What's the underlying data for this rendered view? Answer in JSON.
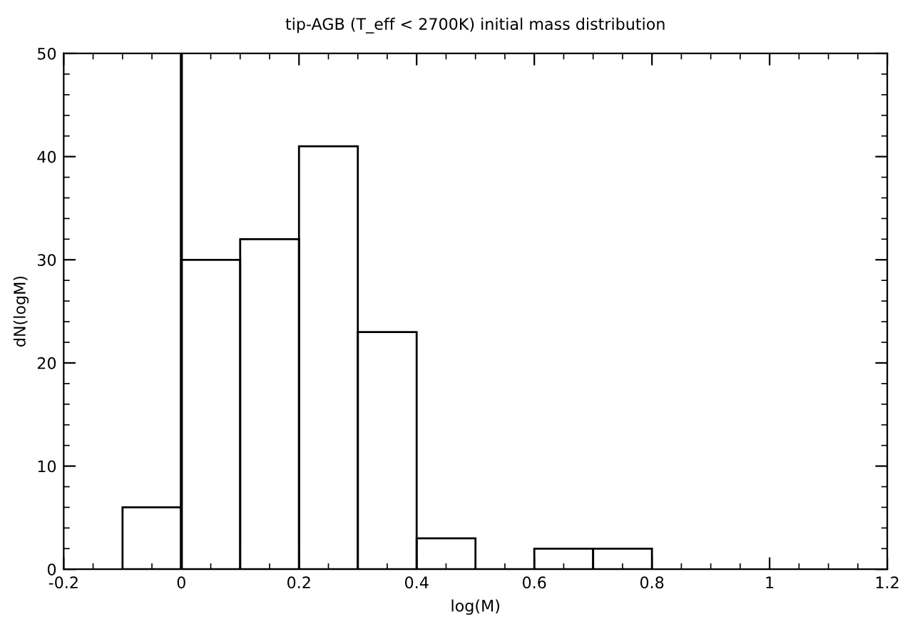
{
  "chart_data": {
    "type": "histogram",
    "title": "tip-AGB (T_eff < 2700K) initial mass distribution",
    "xlabel": "log(M)",
    "ylabel": "dN(logM)",
    "bins": [
      -0.1,
      0.0,
      0.1,
      0.2,
      0.3,
      0.4,
      0.5,
      0.6,
      0.7,
      0.8
    ],
    "values": [
      6,
      30,
      32,
      41,
      23,
      3,
      0,
      2,
      2
    ],
    "color": "#000000",
    "xlim": [
      -0.2,
      1.2
    ],
    "xticks": [
      -0.2,
      0,
      0.2,
      0.4,
      0.6,
      0.8,
      1,
      1.2
    ],
    "ylim": [
      0,
      50
    ],
    "yticks": [
      0,
      10,
      20,
      30,
      40,
      50
    ],
    "ref_lines": [
      {
        "axis": "x",
        "value": 0,
        "color": "#000000"
      }
    ],
    "grid": false
  }
}
